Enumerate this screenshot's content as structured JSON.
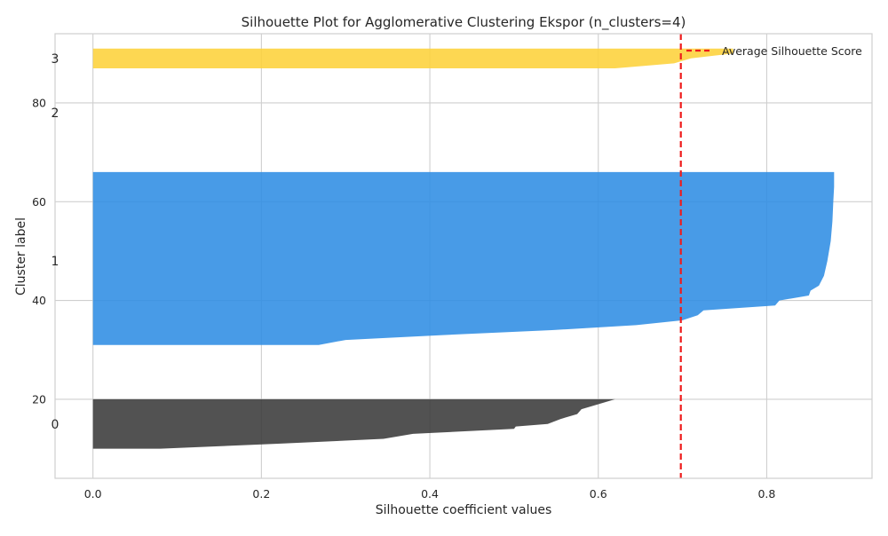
{
  "chart_data": {
    "type": "area",
    "title": "Silhouette Plot for Agglomerative Clustering Ekspor (n_clusters=4)",
    "xlabel": "Silhouette coefficient values",
    "ylabel": "Cluster label",
    "xlim": [
      -0.045,
      0.925
    ],
    "ylim": [
      4,
      94
    ],
    "grid": true,
    "x_ticks": [
      0.0,
      0.2,
      0.4,
      0.6,
      0.8
    ],
    "x_tick_labels": [
      "0.0",
      "0.2",
      "0.4",
      "0.6",
      "0.8"
    ],
    "y_ticks": [
      20,
      40,
      60,
      80
    ],
    "y_tick_labels": [
      "20",
      "40",
      "60",
      "80"
    ],
    "average_silhouette_score": 0.698,
    "legend": {
      "entries": [
        "Average Silhouette Score"
      ],
      "placement": "top-right"
    },
    "colors": {
      "cluster_0": "#3a3a3a",
      "cluster_1": "#2f8de4",
      "cluster_2": "#3fa43f",
      "cluster_3": "#fdd13a",
      "average_line": "#ee1c1c",
      "grid": "#cfcfcf"
    },
    "clusters": [
      {
        "label": "0",
        "label_y": 15,
        "profile": [
          [
            10,
            0.0
          ],
          [
            10,
            0.08
          ],
          [
            11,
            0.22
          ],
          [
            12,
            0.345
          ],
          [
            13,
            0.38
          ],
          [
            14,
            0.5
          ],
          [
            14.5,
            0.502
          ],
          [
            15,
            0.54
          ],
          [
            16,
            0.555
          ],
          [
            17,
            0.575
          ],
          [
            18,
            0.58
          ],
          [
            19,
            0.6
          ],
          [
            20,
            0.62
          ]
        ]
      },
      {
        "label": "1",
        "label_y": 48,
        "profile": [
          [
            31,
            0.0
          ],
          [
            31,
            0.268
          ],
          [
            32,
            0.3
          ],
          [
            33,
            0.415
          ],
          [
            34,
            0.545
          ],
          [
            35,
            0.645
          ],
          [
            36,
            0.7
          ],
          [
            37,
            0.718
          ],
          [
            38,
            0.725
          ],
          [
            39,
            0.81
          ],
          [
            40,
            0.815
          ],
          [
            41,
            0.85
          ],
          [
            42,
            0.852
          ],
          [
            43,
            0.862
          ],
          [
            45,
            0.868
          ],
          [
            48,
            0.872
          ],
          [
            52,
            0.876
          ],
          [
            56,
            0.878
          ],
          [
            60,
            0.879
          ],
          [
            63,
            0.88
          ],
          [
            66,
            0.88
          ]
        ]
      },
      {
        "label": "2",
        "label_y": 78,
        "profile": []
      },
      {
        "label": "3",
        "label_y": 89,
        "profile": [
          [
            87,
            0.0
          ],
          [
            87,
            0.62
          ],
          [
            88,
            0.69
          ],
          [
            89,
            0.71
          ],
          [
            90,
            0.76
          ],
          [
            91,
            0.76
          ]
        ]
      }
    ]
  }
}
